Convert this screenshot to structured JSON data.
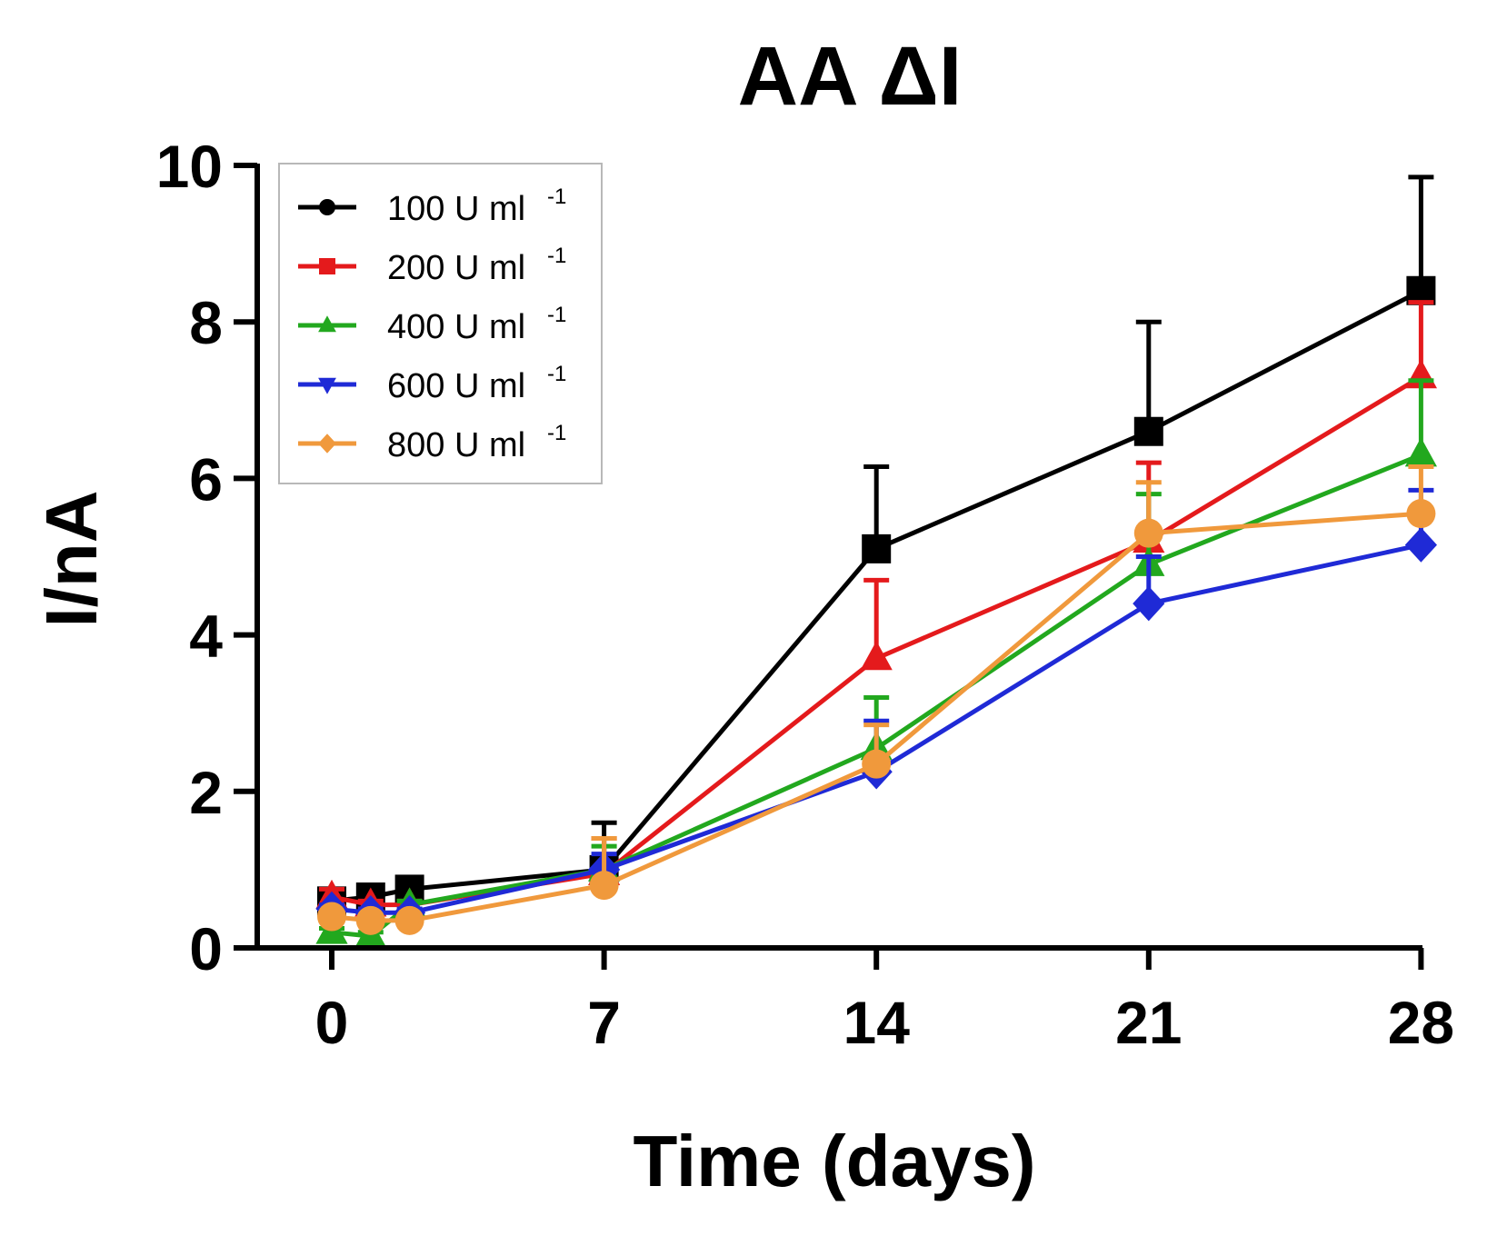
{
  "chart_data": {
    "type": "line",
    "title": "AA ΔI",
    "xlabel": "Time (days)",
    "ylabel": "I/nA",
    "xlim": [
      -2,
      28
    ],
    "ylim": [
      0,
      10
    ],
    "xticks": [
      0,
      7,
      14,
      21,
      28
    ],
    "yticks": [
      0,
      2,
      4,
      6,
      8,
      10
    ],
    "x": [
      0,
      1,
      2,
      7,
      14,
      21,
      28
    ],
    "legend_position": "top-left",
    "series": [
      {
        "name": "100 U ml",
        "superscript": "-1",
        "color": "#000000",
        "marker": "square",
        "legend_marker": "circle",
        "values": [
          0.6,
          0.65,
          0.75,
          1.0,
          5.1,
          6.6,
          8.4
        ],
        "errors": [
          0.1,
          0.05,
          0.1,
          0.6,
          1.05,
          1.4,
          1.45
        ]
      },
      {
        "name": "200 U ml",
        "superscript": "-1",
        "color": "#e41a1c",
        "marker": "triangle-up",
        "legend_marker": "square",
        "values": [
          0.65,
          0.55,
          0.55,
          0.95,
          3.7,
          5.2,
          7.3
        ],
        "errors": [
          0.1,
          0.05,
          0.05,
          0.45,
          1.0,
          1.0,
          0.95
        ]
      },
      {
        "name": "400 U ml",
        "superscript": "-1",
        "color": "#22a81e",
        "marker": "triangle-up",
        "legend_marker": "triangle-up",
        "values": [
          0.2,
          0.15,
          0.55,
          1.0,
          2.55,
          4.9,
          6.3
        ],
        "errors": [
          0.05,
          0.05,
          0.05,
          0.3,
          0.65,
          0.9,
          0.95
        ]
      },
      {
        "name": "600 U ml",
        "superscript": "-1",
        "color": "#1f2ad6",
        "marker": "diamond",
        "legend_marker": "triangle-down",
        "values": [
          0.5,
          0.45,
          0.45,
          1.0,
          2.25,
          4.4,
          5.15
        ],
        "errors": [
          0.05,
          0.05,
          0.05,
          0.2,
          0.65,
          0.6,
          0.7
        ]
      },
      {
        "name": "800 U ml",
        "superscript": "-1",
        "color": "#f0993c",
        "marker": "circle",
        "legend_marker": "diamond",
        "values": [
          0.4,
          0.35,
          0.35,
          0.8,
          2.35,
          5.3,
          5.55
        ],
        "errors": [
          0.05,
          0.05,
          0.05,
          0.6,
          0.5,
          0.65,
          0.6
        ]
      }
    ]
  }
}
